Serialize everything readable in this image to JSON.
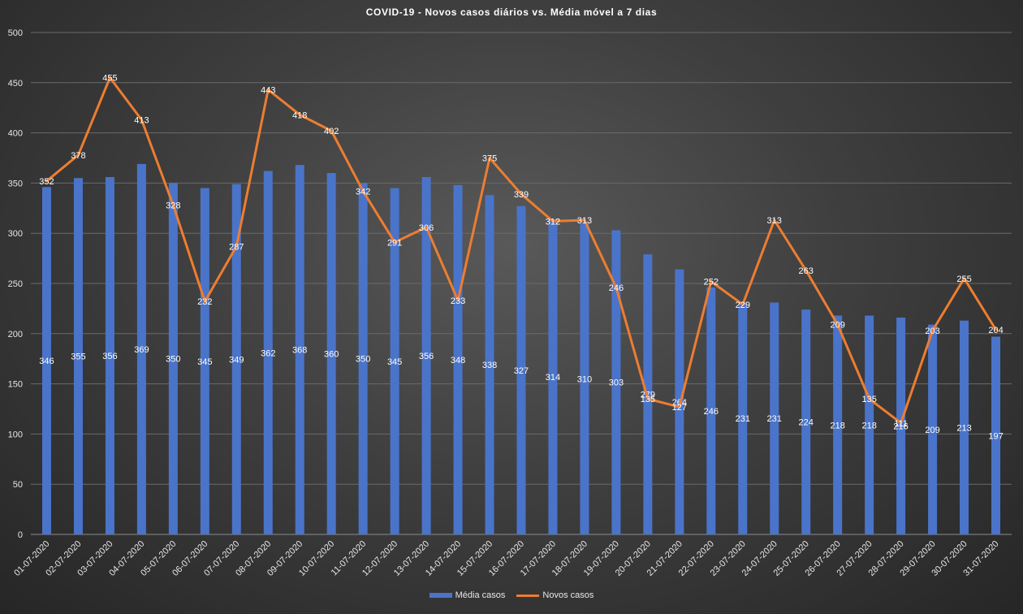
{
  "chart_data": {
    "type": "bar",
    "title": "COVID-19  - Novos casos diários  vs. Média  móvel  a 7 dias",
    "xlabel": "",
    "ylabel": "",
    "ylim": [
      0,
      500
    ],
    "yticks": [
      0,
      50,
      100,
      150,
      200,
      250,
      300,
      350,
      400,
      450,
      500
    ],
    "grid": true,
    "legend_position": "bottom",
    "colors": {
      "bar": "#4a74c9",
      "line": "#ed7d31",
      "grid": "#6a6a6a"
    },
    "categories": [
      "01-07-2020",
      "02-07-2020",
      "03-07-2020",
      "04-07-2020",
      "05-07-2020",
      "06-07-2020",
      "07-07-2020",
      "08-07-2020",
      "09-07-2020",
      "10-07-2020",
      "11-07-2020",
      "12-07-2020",
      "13-07-2020",
      "14-07-2020",
      "15-07-2020",
      "16-07-2020",
      "17-07-2020",
      "18-07-2020",
      "19-07-2020",
      "20-07-2020",
      "21-07-2020",
      "22-07-2020",
      "23-07-2020",
      "24-07-2020",
      "25-07-2020",
      "26-07-2020",
      "27-07-2020",
      "28-07-2020",
      "29-07-2020",
      "30-07-2020",
      "31-07-2020"
    ],
    "series": [
      {
        "name": "Média casos",
        "type": "bar",
        "values": [
          346,
          355,
          356,
          369,
          350,
          345,
          349,
          362,
          368,
          360,
          350,
          345,
          356,
          348,
          338,
          327,
          314,
          310,
          303,
          279,
          264,
          246,
          231,
          231,
          224,
          218,
          218,
          216,
          209,
          213,
          197
        ]
      },
      {
        "name": "Novos casos",
        "type": "line",
        "values": [
          352,
          378,
          455,
          413,
          328,
          232,
          287,
          443,
          418,
          402,
          342,
          291,
          306,
          233,
          375,
          339,
          312,
          313,
          246,
          135,
          127,
          252,
          229,
          313,
          263,
          209,
          135,
          111,
          203,
          255,
          204
        ]
      }
    ]
  }
}
